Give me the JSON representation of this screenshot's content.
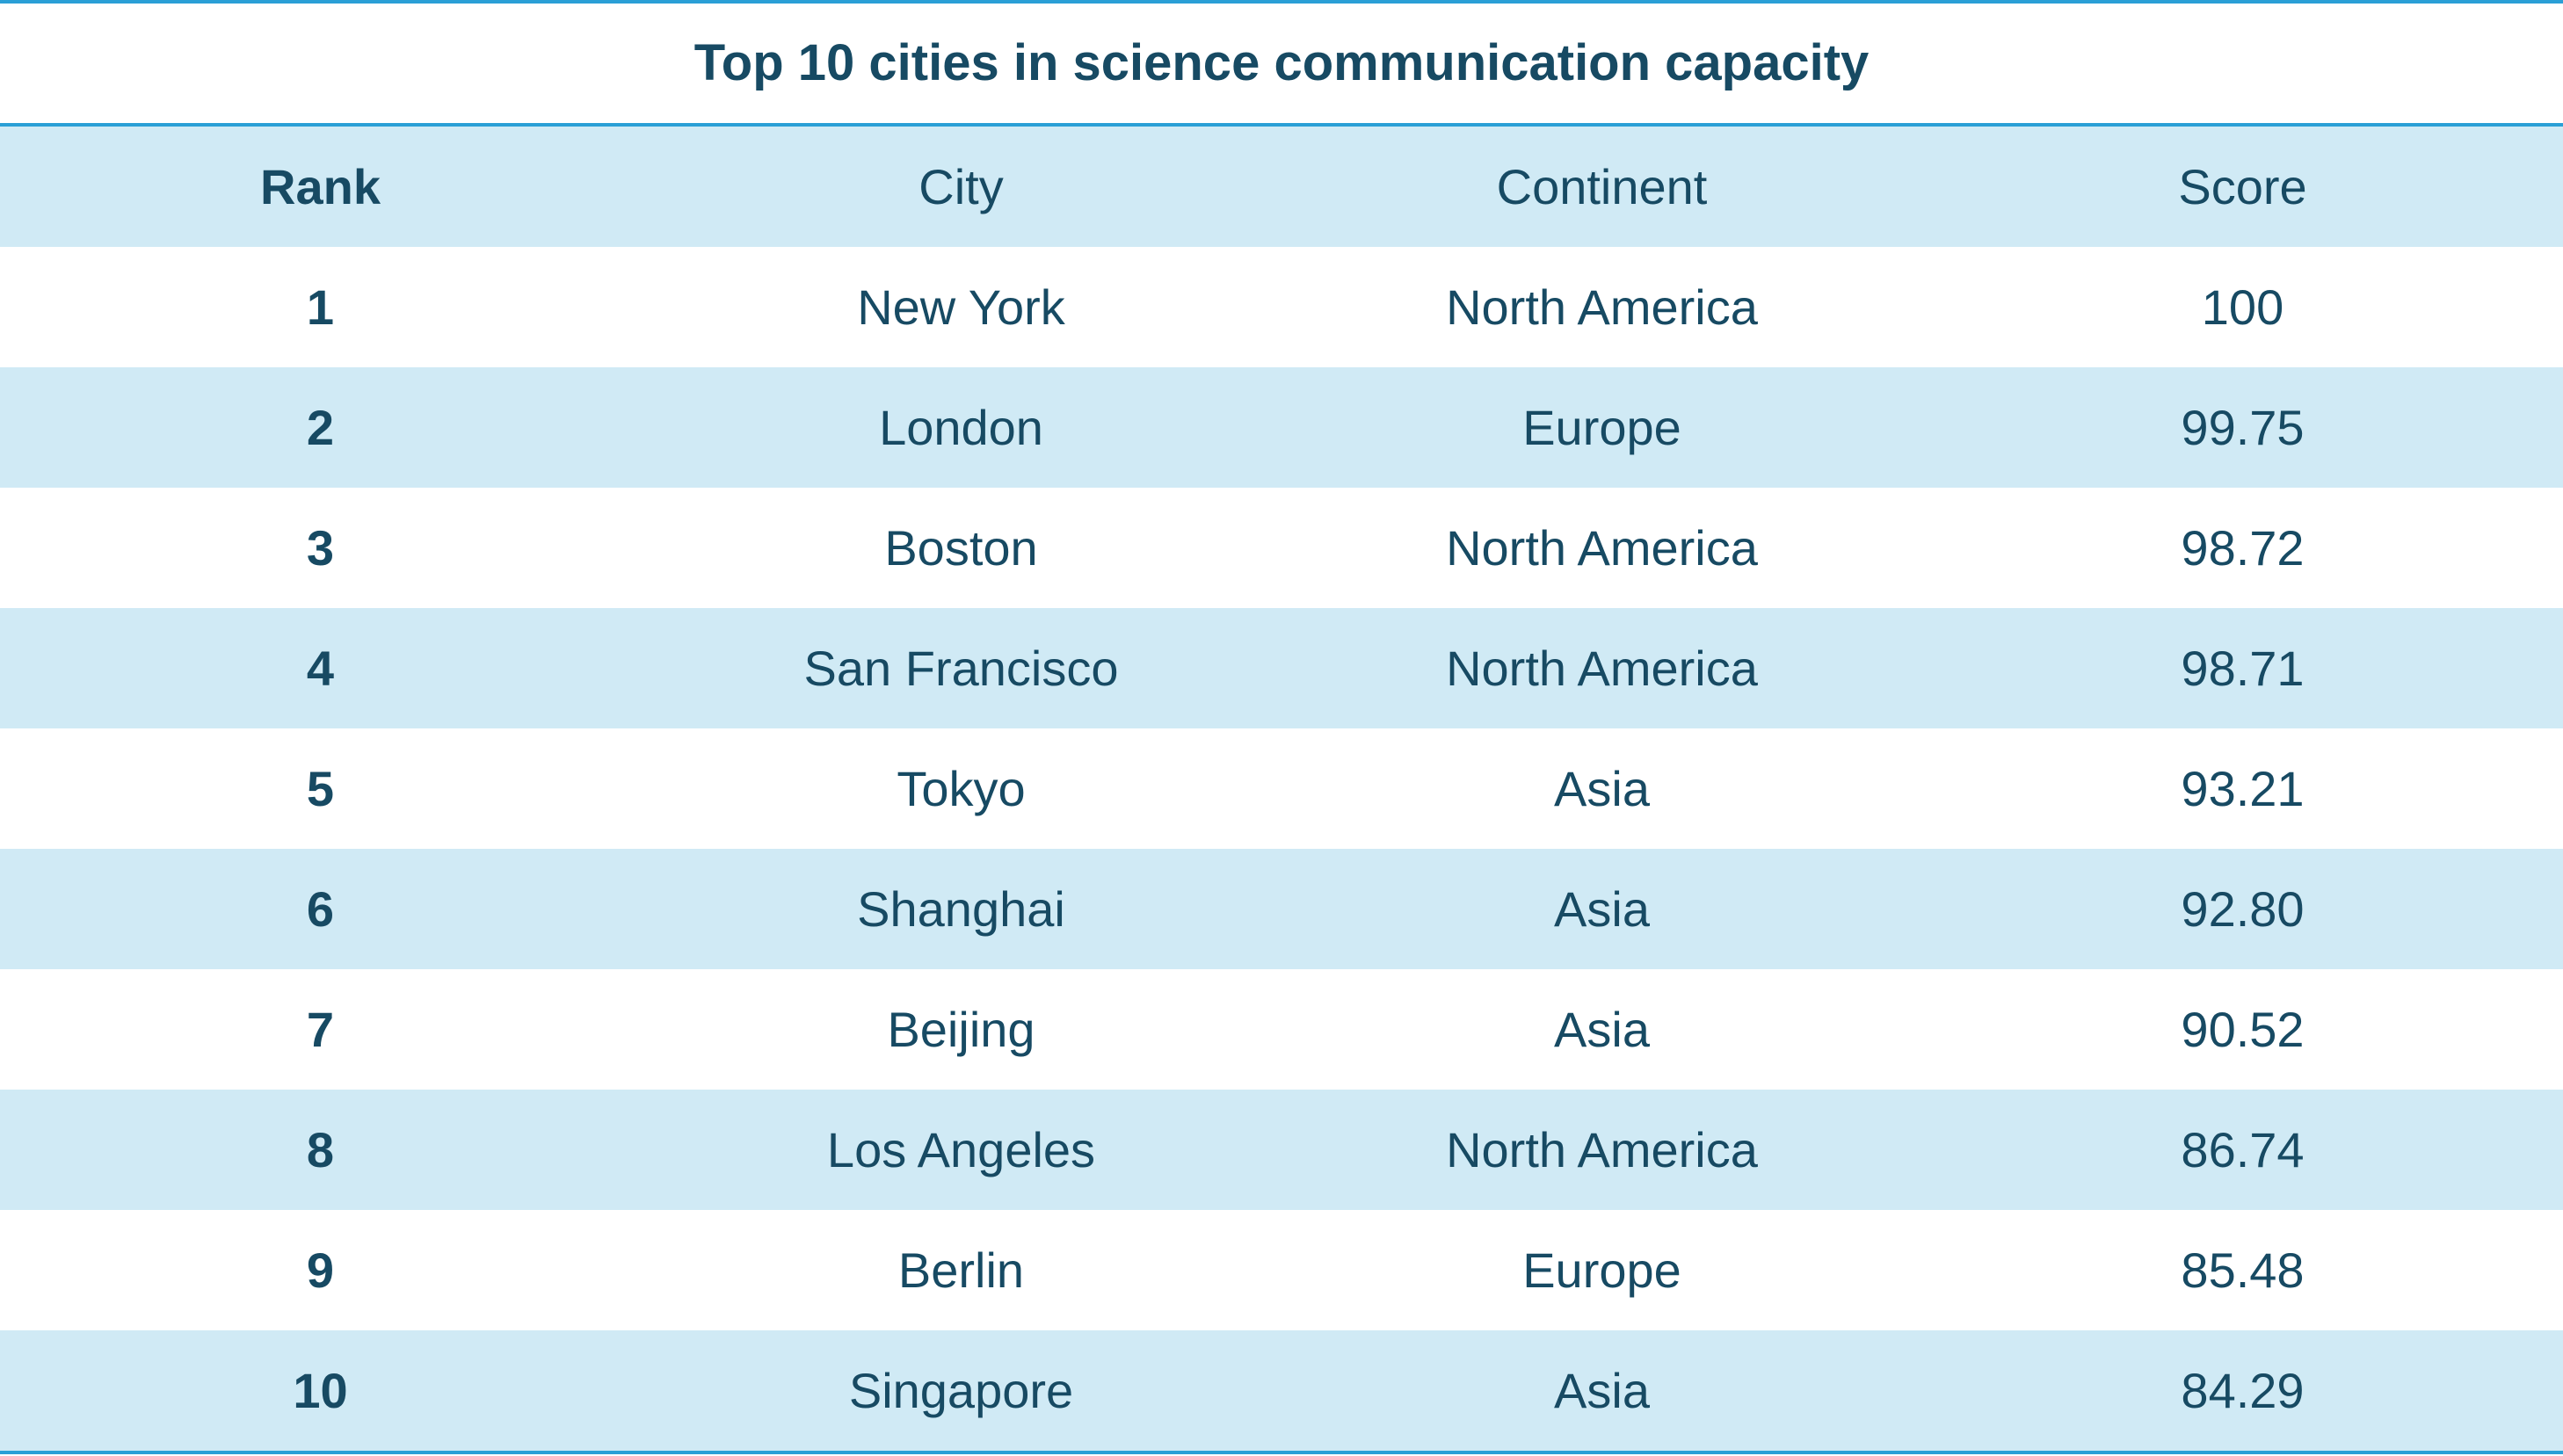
{
  "table": {
    "title": "Top 10 cities in science communication capacity",
    "columns": [
      "Rank",
      "City",
      "Continent",
      "Score"
    ],
    "rows": [
      [
        "1",
        "New York",
        "North America",
        "100"
      ],
      [
        "2",
        "London",
        "Europe",
        "99.75"
      ],
      [
        "3",
        "Boston",
        "North America",
        "98.72"
      ],
      [
        "4",
        "San Francisco",
        "North America",
        "98.71"
      ],
      [
        "5",
        "Tokyo",
        "Asia",
        "93.21"
      ],
      [
        "6",
        "Shanghai",
        "Asia",
        "92.80"
      ],
      [
        "7",
        "Beijing",
        "Asia",
        "90.52"
      ],
      [
        "8",
        "Los Angeles",
        "North America",
        "86.74"
      ],
      [
        "9",
        "Berlin",
        "Europe",
        "85.48"
      ],
      [
        "10",
        "Singapore",
        "Asia",
        "84.29"
      ]
    ]
  }
}
